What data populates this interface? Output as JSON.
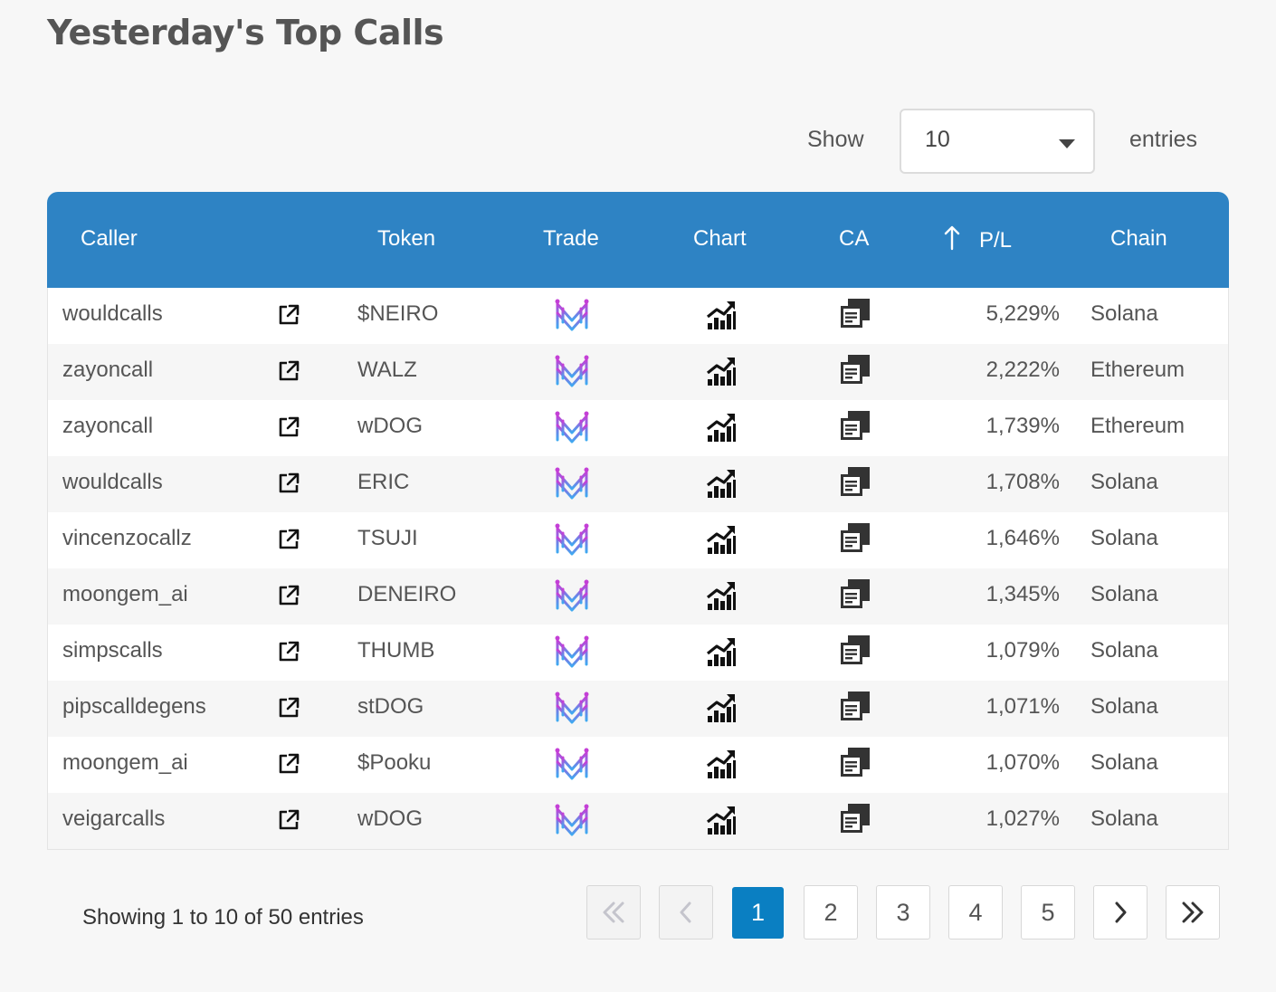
{
  "title": "Yesterday's Top Calls",
  "length_menu": {
    "show_label": "Show",
    "selected": "10",
    "entries_label": "entries"
  },
  "columns": {
    "caller": "Caller",
    "token": "Token",
    "trade": "Trade",
    "chart": "Chart",
    "ca": "CA",
    "pl": "P/L",
    "chain": "Chain"
  },
  "icons": {
    "external_link": "external-link-icon",
    "trade": "trade-logo-icon",
    "chart": "chart-icon",
    "ca": "copy-icon",
    "sort": "sort-arrow-up-icon"
  },
  "colors": {
    "header": "#2e83c4",
    "active_page": "#0a7fc2"
  },
  "rows": [
    {
      "caller": "wouldcalls",
      "token": "$NEIRO",
      "pl": "5,229%",
      "chain": "Solana"
    },
    {
      "caller": "zayoncall",
      "token": "WALZ",
      "pl": "2,222%",
      "chain": "Ethereum"
    },
    {
      "caller": "zayoncall",
      "token": "wDOG",
      "pl": "1,739%",
      "chain": "Ethereum"
    },
    {
      "caller": "wouldcalls",
      "token": "ERIC",
      "pl": "1,708%",
      "chain": "Solana"
    },
    {
      "caller": "vincenzocallz",
      "token": "TSUJI",
      "pl": "1,646%",
      "chain": "Solana"
    },
    {
      "caller": "moongem_ai",
      "token": "DENEIRO",
      "pl": "1,345%",
      "chain": "Solana"
    },
    {
      "caller": "simpscalls",
      "token": "THUMB",
      "pl": "1,079%",
      "chain": "Solana"
    },
    {
      "caller": "pipscalldegens",
      "token": "stDOG",
      "pl": "1,071%",
      "chain": "Solana"
    },
    {
      "caller": "moongem_ai",
      "token": "$Pooku",
      "pl": "1,070%",
      "chain": "Solana"
    },
    {
      "caller": "veigarcalls",
      "token": "wDOG",
      "pl": "1,027%",
      "chain": "Solana"
    }
  ],
  "info": "Showing 1 to 10 of 50 entries",
  "pagination": {
    "first": "«",
    "prev": "‹",
    "next": "›",
    "last": "»",
    "pages": [
      "1",
      "2",
      "3",
      "4",
      "5"
    ],
    "current": "1"
  }
}
